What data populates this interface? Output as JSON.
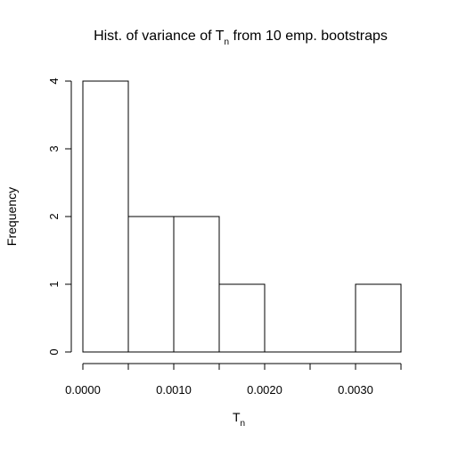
{
  "chart_data": {
    "type": "bar",
    "title": {
      "prefix": "Hist. of variance of T",
      "subscript": "n",
      "suffix": " from 10 emp. bootstraps"
    },
    "xlabel": {
      "main": "T",
      "subscript": "n"
    },
    "ylabel": "Frequency",
    "bins": [
      {
        "from": 0.0,
        "to": 0.0005,
        "count": 4
      },
      {
        "from": 0.0005,
        "to": 0.001,
        "count": 2
      },
      {
        "from": 0.001,
        "to": 0.0015,
        "count": 2
      },
      {
        "from": 0.0015,
        "to": 0.002,
        "count": 1
      },
      {
        "from": 0.002,
        "to": 0.0025,
        "count": 0
      },
      {
        "from": 0.0025,
        "to": 0.003,
        "count": 0
      },
      {
        "from": 0.003,
        "to": 0.0035,
        "count": 1
      }
    ],
    "xlim": [
      0.0,
      0.0035
    ],
    "ylim": [
      0,
      4
    ],
    "x_ticks": [
      0.0,
      0.0005,
      0.001,
      0.0015,
      0.002,
      0.0025,
      0.003,
      0.0035
    ],
    "x_tick_labels": [
      "0.0000",
      "",
      "0.0010",
      "",
      "0.0020",
      "",
      "0.0030",
      ""
    ],
    "y_ticks": [
      0,
      1,
      2,
      3,
      4
    ],
    "y_tick_labels": [
      "0",
      "1",
      "2",
      "3",
      "4"
    ],
    "grid": false,
    "bar_fill": "#ffffff",
    "bar_stroke": "#000000"
  }
}
